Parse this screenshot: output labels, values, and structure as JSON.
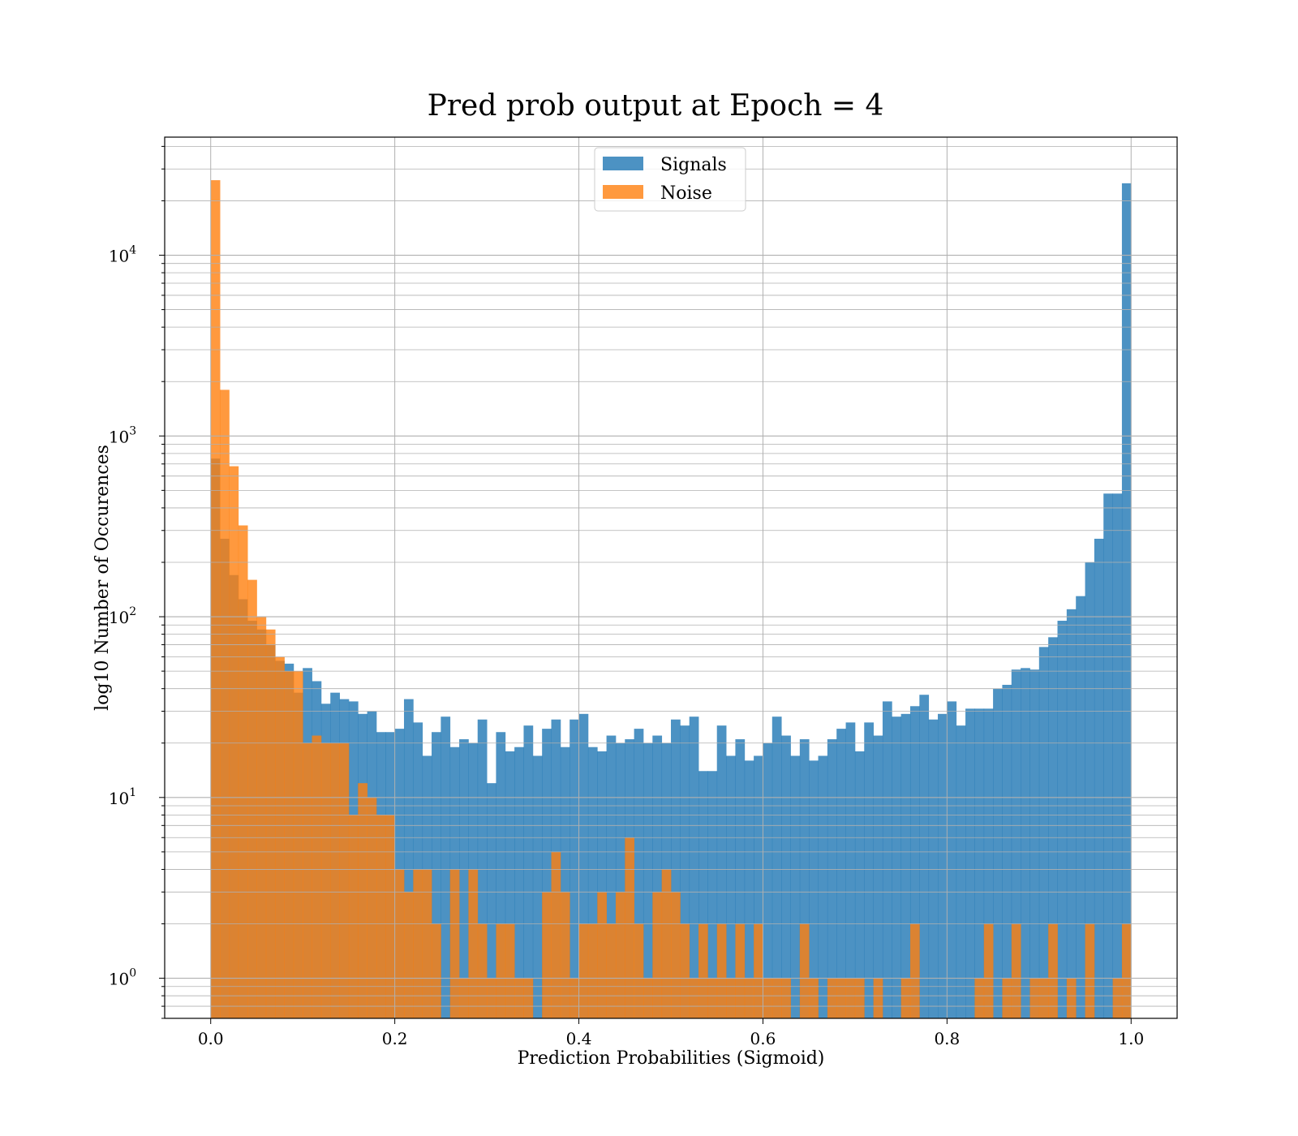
{
  "chart_data": {
    "type": "bar",
    "title": "Pred prob output at Epoch = 4",
    "xlabel": "Prediction Probabilities (Sigmoid)",
    "ylabel": "log10 Number of Occurences",
    "yscale": "log",
    "xlim": [
      -0.05,
      1.05
    ],
    "ylim": [
      0.6,
      45000
    ],
    "grid": true,
    "legend_position": "top-center",
    "bin_edges_range": [
      0,
      1
    ],
    "x_tick_labels": [
      "0.0",
      "0.2",
      "0.4",
      "0.6",
      "0.8",
      "1.0"
    ],
    "x_ticks": [
      0,
      0.2,
      0.4,
      0.6,
      0.8,
      1.0
    ],
    "y_tick_labels": [
      {
        "base": "10",
        "exp": "0"
      },
      {
        "base": "10",
        "exp": "1"
      },
      {
        "base": "10",
        "exp": "2"
      },
      {
        "base": "10",
        "exp": "3"
      },
      {
        "base": "10",
        "exp": "4"
      }
    ],
    "y_ticks": [
      1,
      10,
      100,
      1000,
      10000
    ],
    "series": [
      {
        "name": "Signals",
        "color": "#1f77b4",
        "opacity": 0.8,
        "values": [
          750,
          270,
          170,
          125,
          95,
          85,
          70,
          57,
          55,
          38,
          52,
          44,
          33,
          38,
          35,
          34,
          29,
          30,
          23,
          23,
          24,
          35,
          26,
          17,
          23,
          28,
          19,
          21,
          20,
          27,
          12,
          23,
          18,
          19,
          25,
          17,
          24,
          27,
          19,
          27,
          29,
          19,
          18,
          22,
          20,
          21,
          24,
          20,
          22,
          20,
          27,
          25,
          28,
          14,
          14,
          25,
          17,
          21,
          16,
          17,
          20,
          28,
          22,
          17,
          21,
          16,
          17,
          21,
          24,
          26,
          18,
          26,
          22,
          34,
          28,
          29,
          32,
          37,
          27,
          29,
          34,
          25,
          31,
          31,
          31,
          40,
          42,
          51,
          52,
          51,
          68,
          77,
          95,
          110,
          130,
          200,
          270,
          480,
          480,
          25000
        ]
      },
      {
        "name": "Noise",
        "color": "#ff7f0e",
        "opacity": 0.8,
        "values": [
          26000,
          1800,
          680,
          320,
          160,
          100,
          85,
          60,
          50,
          50,
          20,
          22,
          20,
          20,
          20,
          8,
          12,
          10,
          8,
          8,
          4,
          3,
          4,
          4,
          2,
          0,
          4,
          1,
          4,
          2,
          1,
          2,
          2,
          1,
          1,
          0,
          3,
          5,
          3,
          1,
          2,
          2,
          3,
          2,
          3,
          6,
          2,
          1,
          3,
          4,
          3,
          2,
          1,
          2,
          1,
          2,
          1,
          2,
          1,
          2,
          1,
          1,
          1,
          0,
          2,
          1,
          0,
          1,
          1,
          1,
          1,
          0,
          1,
          0,
          0,
          1,
          2,
          0,
          0,
          0,
          0,
          0,
          0,
          1,
          2,
          0,
          1,
          2,
          0,
          1,
          1,
          2,
          0,
          1,
          0,
          2,
          0,
          0,
          1,
          2
        ]
      }
    ]
  }
}
